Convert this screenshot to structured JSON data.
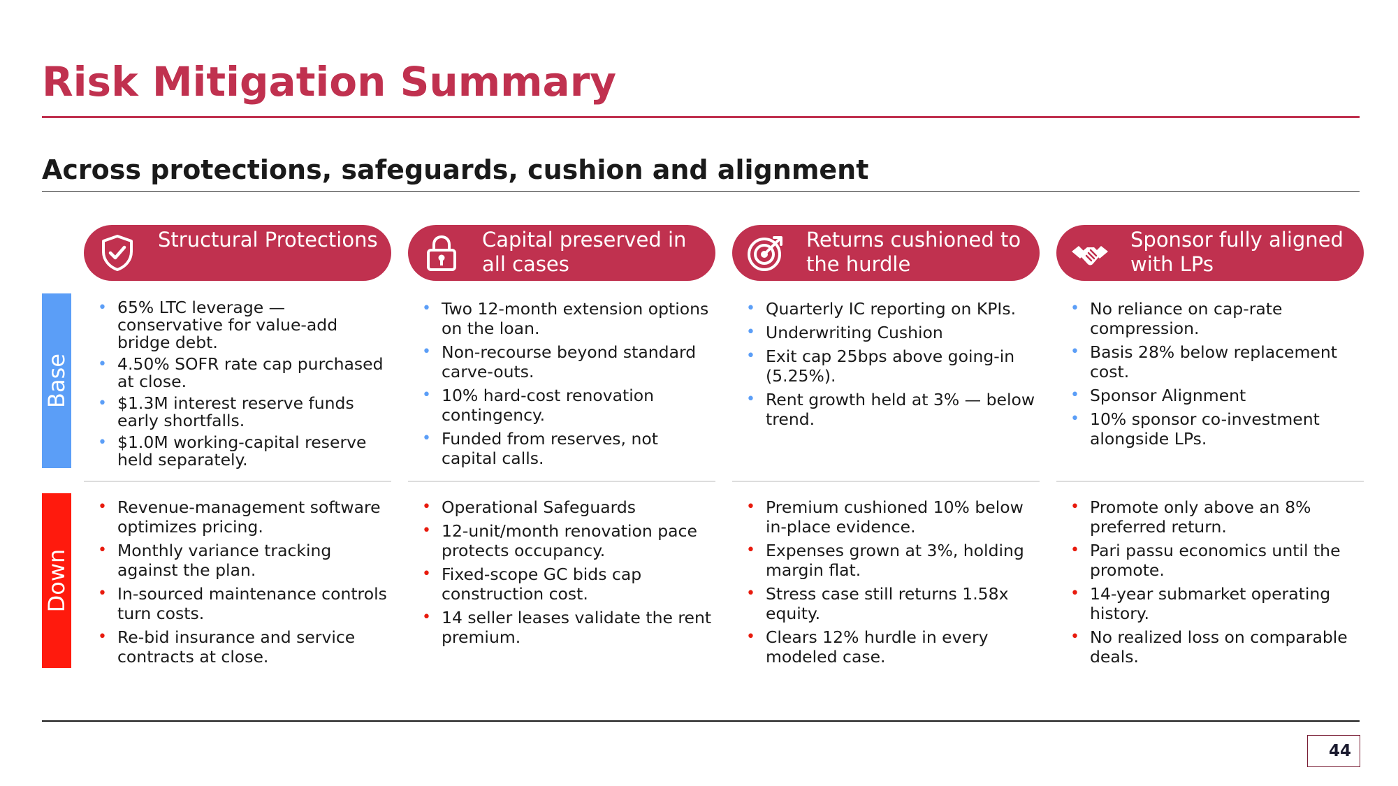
{
  "title": "Risk Mitigation Summary",
  "subtitle": "Across protections, safeguards, cushion and alignment",
  "colors": {
    "accent": "#c0314f",
    "base_band": "#5b9ef7",
    "down_band": "#ff1a0d"
  },
  "rows": {
    "base": "Base",
    "down": "Down"
  },
  "columns": [
    {
      "header": "Structural Protections",
      "icon": "shield-check-icon",
      "base": [
        "65% LTC leverage — conservative for value-add bridge debt.",
        "4.50% SOFR rate cap purchased at close.",
        "$1.3M interest reserve funds early shortfalls.",
        "$1.0M working-capital reserve held separately."
      ],
      "down": [
        "Revenue-management software optimizes pricing.",
        "Monthly variance tracking against the plan.",
        "In-sourced maintenance controls turn costs.",
        "Re-bid insurance and service contracts at close."
      ]
    },
    {
      "header": "Capital preserved in all cases",
      "icon": "padlock-icon",
      "base": [
        "Two 12-month extension options on the loan.",
        "Non-recourse beyond standard carve-outs.",
        "10% hard-cost renovation contingency.",
        "Funded from reserves, not capital calls."
      ],
      "down": [
        "Operational Safeguards",
        "12-unit/month renovation pace protects occupancy.",
        "Fixed-scope GC bids cap construction cost.",
        "14 seller leases validate the rent premium."
      ]
    },
    {
      "header": "Returns cushioned to the hurdle",
      "icon": "target-icon",
      "base": [
        "Quarterly IC reporting on KPIs.",
        "Underwriting Cushion",
        "Exit cap 25bps above going-in (5.25%).",
        "Rent growth held at 3% — below trend."
      ],
      "down": [
        "Premium cushioned 10% below in-place evidence.",
        "Expenses grown at 3%, holding margin flat.",
        "Stress case still returns 1.58x equity.",
        "Clears 12% hurdle in every modeled case."
      ]
    },
    {
      "header": "Sponsor fully aligned with LPs",
      "icon": "handshake-icon",
      "base": [
        "No reliance on cap-rate compression.",
        "Basis 28% below replacement cost.",
        "Sponsor Alignment",
        "10% sponsor co-investment alongside LPs."
      ],
      "down": [
        "Promote only above an 8% preferred return.",
        "Pari passu economics until the promote.",
        "14-year submarket operating history.",
        "No realized loss on comparable deals."
      ]
    }
  ],
  "page_number": "44"
}
